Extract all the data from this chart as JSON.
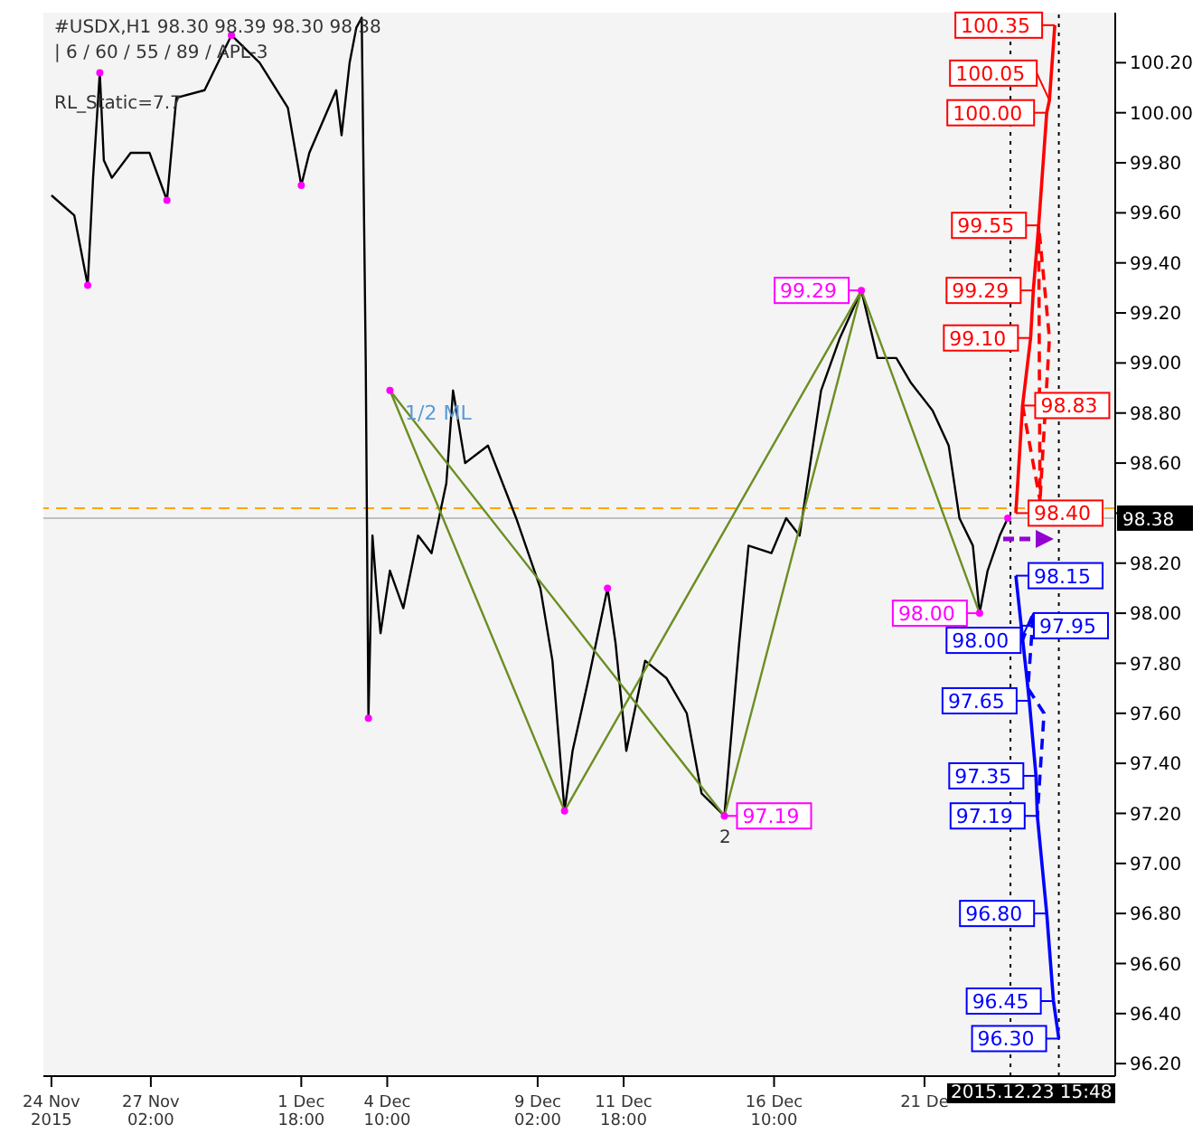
{
  "chart_data": {
    "type": "line",
    "xlim": [
      "2015-11-23T18:00",
      "2015-12-27T00:00"
    ],
    "ylim": [
      96.15,
      100.4
    ],
    "xticks": [
      {
        "value": "2015-11-24T00:00",
        "label": "24 Nov 2015"
      },
      {
        "value": "2015-11-27T02:00",
        "label": "27 Nov 02:00"
      },
      {
        "value": "2015-12-01T18:00",
        "label": "1 Dec 18:00"
      },
      {
        "value": "2015-12-04T10:00",
        "label": "4 Dec 10:00"
      },
      {
        "value": "2015-12-09T02:00",
        "label": "9 Dec 02:00"
      },
      {
        "value": "2015-12-11T18:00",
        "label": "11 Dec 18:00"
      },
      {
        "value": "2015-12-16T10:00",
        "label": "16 Dec 10:00"
      },
      {
        "value": "2015-12-21T02:00",
        "label": "21 De"
      }
    ],
    "yticks": [
      {
        "value": 96.2,
        "label": "96.20"
      },
      {
        "value": 96.4,
        "label": "96.40"
      },
      {
        "value": 96.6,
        "label": "96.60"
      },
      {
        "value": 96.8,
        "label": "96.80"
      },
      {
        "value": 97,
        "label": "97.00"
      },
      {
        "value": 97.2,
        "label": "97.20"
      },
      {
        "value": 97.4,
        "label": "97.40"
      },
      {
        "value": 97.6,
        "label": "97.60"
      },
      {
        "value": 97.8,
        "label": "97.80"
      },
      {
        "value": 98,
        "label": "98.00"
      },
      {
        "value": 98.2,
        "label": "98.20"
      },
      {
        "value": 98.4,
        "label": null
      },
      {
        "value": 98.6,
        "label": "98.60"
      },
      {
        "value": 98.8,
        "label": "98.80"
      },
      {
        "value": 99,
        "label": "99.00"
      },
      {
        "value": 99.2,
        "label": "99.20"
      },
      {
        "value": 99.4,
        "label": "99.40"
      },
      {
        "value": 99.6,
        "label": "99.60"
      },
      {
        "value": 99.8,
        "label": "99.80"
      },
      {
        "value": 100,
        "label": "100.00"
      },
      {
        "value": 100.2,
        "label": "100.20"
      }
    ],
    "series": [
      {
        "color": "#000000",
        "x": [
          "2015-11-24T00:00",
          "2015-11-24T17:00",
          "2015-11-25T03:00",
          "2015-11-25T07:00",
          "2015-11-25T12:00",
          "2015-11-25T15:00",
          "2015-11-25T21:00",
          "2015-11-26T11:00",
          "2015-11-27T01:00",
          "2015-11-27T14:00",
          "2015-11-27T21:00",
          "2015-11-28T18:00",
          "2015-11-29T14:00",
          "2015-11-30T11:00",
          "2015-12-01T08:00",
          "2015-12-01T18:00",
          "2015-12-02T00:00",
          "2015-12-02T12:00",
          "2015-12-02T20:00",
          "2015-12-03T00:00",
          "2015-12-03T06:00",
          "2015-12-03T11:00",
          "2015-12-03T15:00",
          "2015-12-03T18:00",
          "2015-12-03T20:00",
          "2015-12-03T23:00",
          "2015-12-04T02:00",
          "2015-12-04T05:00",
          "2015-12-04T12:00",
          "2015-12-04T22:00",
          "2015-12-05T09:00",
          "2015-12-05T19:00",
          "2015-12-06T06:00",
          "2015-12-06T11:00",
          "2015-12-06T20:00",
          "2015-12-07T13:00",
          "2015-12-08T10:00",
          "2015-12-09T04:00",
          "2015-12-09T13:00",
          "2015-12-09T22:00",
          "2015-12-10T04:00",
          "2015-12-10T16:00",
          "2015-12-11T06:00",
          "2015-12-11T12:00",
          "2015-12-11T20:00",
          "2015-12-12T10:00",
          "2015-12-13T02:00",
          "2015-12-13T17:00",
          "2015-12-14T04:00",
          "2015-12-14T21:00",
          "2015-12-15T08:00",
          "2015-12-15T15:00",
          "2015-12-16T08:00",
          "2015-12-16T19:00",
          "2015-12-17T05:00",
          "2015-12-17T21:00",
          "2015-12-18T11:00",
          "2015-12-19T03:00",
          "2015-12-19T15:00",
          "2015-12-20T05:00",
          "2015-12-20T16:00",
          "2015-12-21T08:00",
          "2015-12-21T20:00",
          "2015-12-22T04:00",
          "2015-12-22T14:00",
          "2015-12-22T19:00",
          "2015-12-23T01:00",
          "2015-12-23T10:00",
          "2015-12-23T16:00"
        ],
        "values": [
          99.67,
          99.59,
          99.31,
          99.74,
          100.16,
          99.81,
          99.74,
          99.84,
          99.84,
          99.65,
          100.06,
          100.09,
          100.31,
          100.2,
          100.02,
          99.71,
          99.84,
          99.99,
          100.09,
          99.91,
          100.2,
          100.34,
          100.38,
          99.0,
          97.58,
          98.31,
          98.1,
          97.92,
          98.17,
          98.02,
          98.31,
          98.24,
          98.52,
          98.89,
          98.6,
          98.67,
          98.38,
          98.1,
          97.81,
          97.21,
          97.45,
          97.74,
          98.1,
          97.88,
          97.45,
          97.81,
          97.74,
          97.6,
          97.28,
          97.19,
          97.88,
          98.27,
          98.24,
          98.38,
          98.31,
          98.89,
          99.1,
          99.29,
          99.02,
          99.02,
          98.92,
          98.81,
          98.67,
          98.38,
          98.27,
          98.0,
          98.17,
          98.31,
          98.38
        ]
      },
      {
        "type": "line",
        "color": "#6b8e23",
        "x": [
          "2015-12-04T12:00",
          "2015-12-09T22:00",
          "2015-12-19T03:00",
          "2015-12-22T19:00"
        ],
        "values": [
          98.89,
          97.21,
          99.29,
          98.0
        ]
      },
      {
        "type": "line",
        "color": "#6b8e23",
        "x": [
          "2015-12-04T12:00",
          "2015-12-14T21:00",
          "2015-12-19T03:00"
        ],
        "values": [
          98.89,
          97.19,
          99.29
        ]
      },
      {
        "type": "line",
        "color": "#ff0000",
        "x": [
          "2015-12-23T22:00",
          "2015-12-24T03:00",
          "2015-12-24T09:00",
          "2015-12-24T11:00",
          "2015-12-24T15:00",
          "2015-12-24T21:00",
          "2015-12-24T23:00",
          "2015-12-25T03:00"
        ],
        "values": [
          98.4,
          98.83,
          99.1,
          99.29,
          99.55,
          100.0,
          100.05,
          100.35
        ],
        "value_labels": [
          "98.40",
          "98.83",
          "99.10",
          "99.29",
          "99.55",
          "100.00",
          "100.05",
          "100.35"
        ]
      },
      {
        "type": "line",
        "color": "#ff0000",
        "line_style": "dashed",
        "x": [
          "2015-12-24T03:00",
          "2015-12-24T16:00",
          "2015-12-24T15:00",
          "2015-12-24T23:00",
          "2015-12-24T16:00"
        ],
        "values": [
          98.83,
          98.45,
          99.55,
          99.1,
          98.45
        ]
      },
      {
        "type": "line",
        "color": "#0000ff",
        "x": [
          "2015-12-23T22:00",
          "2015-12-24T02:00",
          "2015-12-24T08:00",
          "2015-12-24T13:00",
          "2015-12-24T14:00",
          "2015-12-24T21:00",
          "2015-12-25T02:00",
          "2015-12-25T06:00"
        ],
        "values": [
          98.15,
          97.95,
          97.65,
          97.35,
          97.19,
          96.8,
          96.45,
          96.3
        ],
        "value_labels": [
          "98.15",
          "97.95",
          "97.65",
          "97.35",
          "97.19",
          "96.80",
          "96.45",
          "96.30"
        ]
      },
      {
        "type": "line",
        "color": "#0000ff",
        "line_style": "dashed",
        "x": [
          "2015-12-24T02:00",
          "2015-12-24T11:00",
          "2015-12-24T07:00",
          "2015-12-24T19:00",
          "2015-12-24T14:00"
        ],
        "values": [
          97.88,
          98.0,
          97.7,
          97.6,
          97.19
        ],
        "value_labels": [
          null,
          "98.00",
          null,
          null,
          null
        ]
      },
      {
        "type": "scatter",
        "color": "#ff00ff",
        "marker": "circle",
        "x": [
          "2015-11-25T03:00",
          "2015-11-25T12:00",
          "2015-11-27T14:00",
          "2015-11-29T14:00",
          "2015-12-01T18:00",
          "2015-12-03T20:00",
          "2015-12-04T12:00",
          "2015-12-09T22:00",
          "2015-12-11T06:00",
          "2015-12-14T21:00",
          "2015-12-19T03:00",
          "2015-12-22T19:00",
          "2015-12-23T16:00"
        ],
        "values": [
          99.31,
          100.16,
          99.65,
          100.31,
          99.71,
          97.58,
          98.89,
          97.21,
          98.1,
          97.19,
          99.29,
          98.0,
          98.38
        ],
        "value_labels": [
          null,
          null,
          null,
          null,
          null,
          null,
          null,
          null,
          null,
          "97.19",
          "99.29",
          "98.00",
          null
        ]
      }
    ],
    "ref_lines": [
      {
        "axis": "y",
        "value": 98.42,
        "color": "#ffa500",
        "line_style": "dashed"
      },
      {
        "axis": "y",
        "value": 98.38,
        "color": "#c0c0c0",
        "line_style": "solid",
        "label": "98.38"
      },
      {
        "axis": "x",
        "value": "2015-12-23T18:00",
        "color": "#000000",
        "line_style": "dotted"
      },
      {
        "axis": "x",
        "value": "2015-12-25T06:00",
        "color": "#000000",
        "line_style": "dotted"
      }
    ],
    "annotations": [
      "#USDX,H1  98.30 98.39 98.30 98.38",
      "| 6 / 60 / 55 / 89 / APL-3",
      "RL_Static=7.7",
      "1/2 ML",
      "2",
      "2015.12.23 15:48"
    ]
  }
}
